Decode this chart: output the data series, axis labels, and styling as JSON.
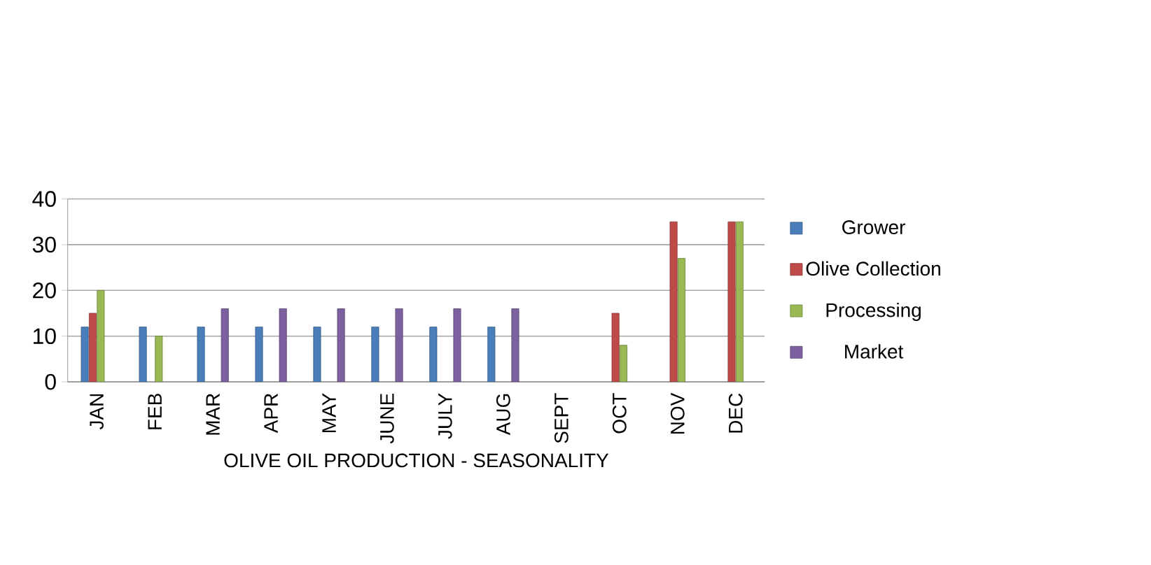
{
  "chart_data": {
    "type": "bar",
    "xlabel": "OLIVE OIL PRODUCTION - SEASONALITY",
    "categories": [
      "JAN",
      "FEB",
      "MAR",
      "APR",
      "MAY",
      "JUNE",
      "JULY",
      "AUG",
      "SEPT",
      "OCT",
      "NOV",
      "DEC"
    ],
    "series": [
      {
        "name": "Grower",
        "color": "#4a7ebb",
        "values": [
          12,
          12,
          12,
          12,
          12,
          12,
          12,
          12,
          null,
          null,
          null,
          null
        ]
      },
      {
        "name": "Olive Collection",
        "color": "#be4b48",
        "values": [
          15,
          null,
          null,
          null,
          null,
          null,
          null,
          null,
          null,
          15,
          35,
          35
        ]
      },
      {
        "name": "Processing",
        "color": "#98b954",
        "values": [
          20,
          10,
          null,
          null,
          null,
          null,
          null,
          null,
          null,
          8,
          27,
          35
        ]
      },
      {
        "name": "Market",
        "color": "#7d60a0",
        "values": [
          null,
          null,
          16,
          16,
          16,
          16,
          16,
          16,
          null,
          null,
          null,
          null
        ]
      }
    ],
    "ylim": [
      0,
      40
    ],
    "yticks": [
      0,
      10,
      20,
      30,
      40
    ],
    "grid": "y",
    "legend": "right"
  }
}
